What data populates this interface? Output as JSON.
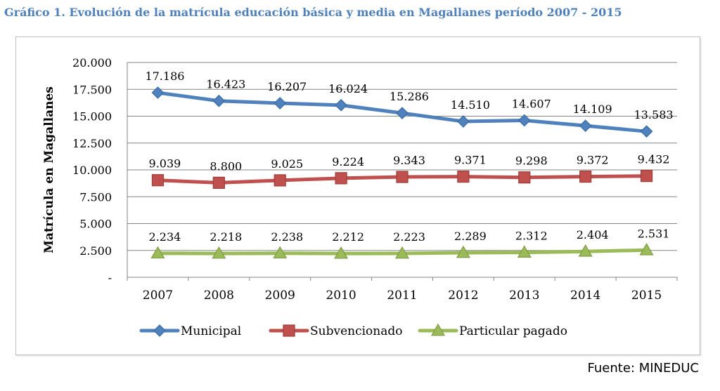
{
  "title": "Gráfico 1. Evolución de la matrícula educación básica y media en Magallanes período 2007 - 2015",
  "source": "Fuente: MINEDUC",
  "chart_data": {
    "type": "line",
    "title": "",
    "xlabel": "",
    "ylabel": "Matrícula en Magallanes",
    "categories": [
      "2007",
      "2008",
      "2009",
      "2010",
      "2011",
      "2012",
      "2013",
      "2014",
      "2015"
    ],
    "ylim": [
      0,
      20000
    ],
    "yticks": [
      0,
      2500,
      5000,
      7500,
      10000,
      12500,
      15000,
      17500,
      20000
    ],
    "ytick_labels": [
      "-",
      "2.500",
      "5.000",
      "7.500",
      "10.000",
      "12.500",
      "15.000",
      "17.500",
      "20.000"
    ],
    "grid": true,
    "legend_position": "bottom",
    "series": [
      {
        "name": "Municipal",
        "color": "#4f81bd",
        "marker": "diamond",
        "values": [
          17186,
          16423,
          16207,
          16024,
          15286,
          14510,
          14607,
          14109,
          13583
        ],
        "labels": [
          "17.186",
          "16.423",
          "16.207",
          "16.024",
          "15.286",
          "14.510",
          "14.607",
          "14.109",
          "13.583"
        ]
      },
      {
        "name": "Subvencionado",
        "color": "#c0504d",
        "marker": "square",
        "values": [
          9039,
          8800,
          9025,
          9224,
          9343,
          9371,
          9298,
          9372,
          9432
        ],
        "labels": [
          "9.039",
          "8.800",
          "9.025",
          "9.224",
          "9.343",
          "9.371",
          "9.298",
          "9.372",
          "9.432"
        ]
      },
      {
        "name": "Particular pagado",
        "color": "#9bbb59",
        "marker": "triangle",
        "values": [
          2234,
          2218,
          2238,
          2212,
          2223,
          2289,
          2312,
          2404,
          2531
        ],
        "labels": [
          "2.234",
          "2.218",
          "2.238",
          "2.212",
          "2.223",
          "2.289",
          "2.312",
          "2.404",
          "2.531"
        ]
      }
    ]
  }
}
